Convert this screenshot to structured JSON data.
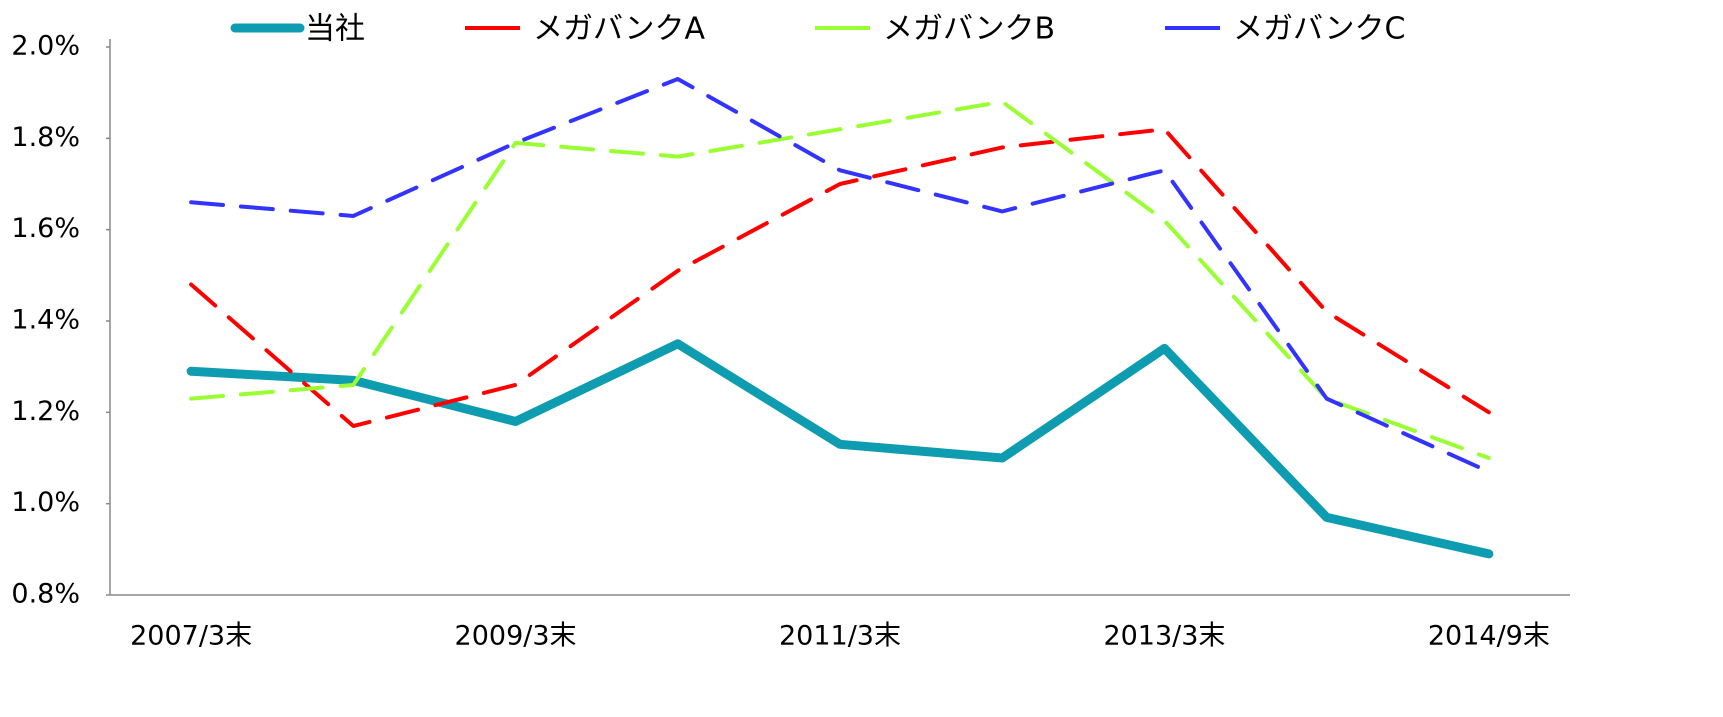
{
  "chart_data": {
    "type": "line",
    "categories": [
      "2007/3末",
      null,
      "2009/3末",
      null,
      "2011/3末",
      null,
      "2013/3末",
      null,
      "2014/9末"
    ],
    "series": [
      {
        "name": "当社",
        "color": "#0e9cb0",
        "line_style": "solid",
        "values": [
          1.29,
          1.27,
          1.18,
          1.35,
          1.13,
          1.1,
          1.34,
          0.97,
          0.89
        ]
      },
      {
        "name": "メガバンクA",
        "color": "#ff0000",
        "line_style": "dashed",
        "values": [
          1.48,
          1.17,
          1.26,
          1.51,
          1.7,
          1.78,
          1.82,
          1.42,
          1.2
        ]
      },
      {
        "name": "メガバンクB",
        "color": "#99ff33",
        "line_style": "dashed",
        "values": [
          1.23,
          1.26,
          1.79,
          1.76,
          1.82,
          1.88,
          1.62,
          1.23,
          1.1
        ]
      },
      {
        "name": "メガバンクC",
        "color": "#3333ff",
        "line_style": "dashed",
        "values": [
          1.66,
          1.63,
          1.79,
          1.93,
          1.73,
          1.64,
          1.73,
          1.23,
          1.07
        ]
      }
    ],
    "ylim": [
      0.8,
      2.0
    ],
    "yticks": [
      {
        "value": 0.8,
        "label": "0.8%"
      },
      {
        "value": 1.0,
        "label": "1.0%"
      },
      {
        "value": 1.2,
        "label": "1.2%"
      },
      {
        "value": 1.4,
        "label": "1.4%"
      },
      {
        "value": 1.6,
        "label": "1.6%"
      },
      {
        "value": 1.8,
        "label": "1.8%"
      },
      {
        "value": 2.0,
        "label": "2.0%"
      }
    ],
    "grid": false,
    "legend": "top"
  }
}
